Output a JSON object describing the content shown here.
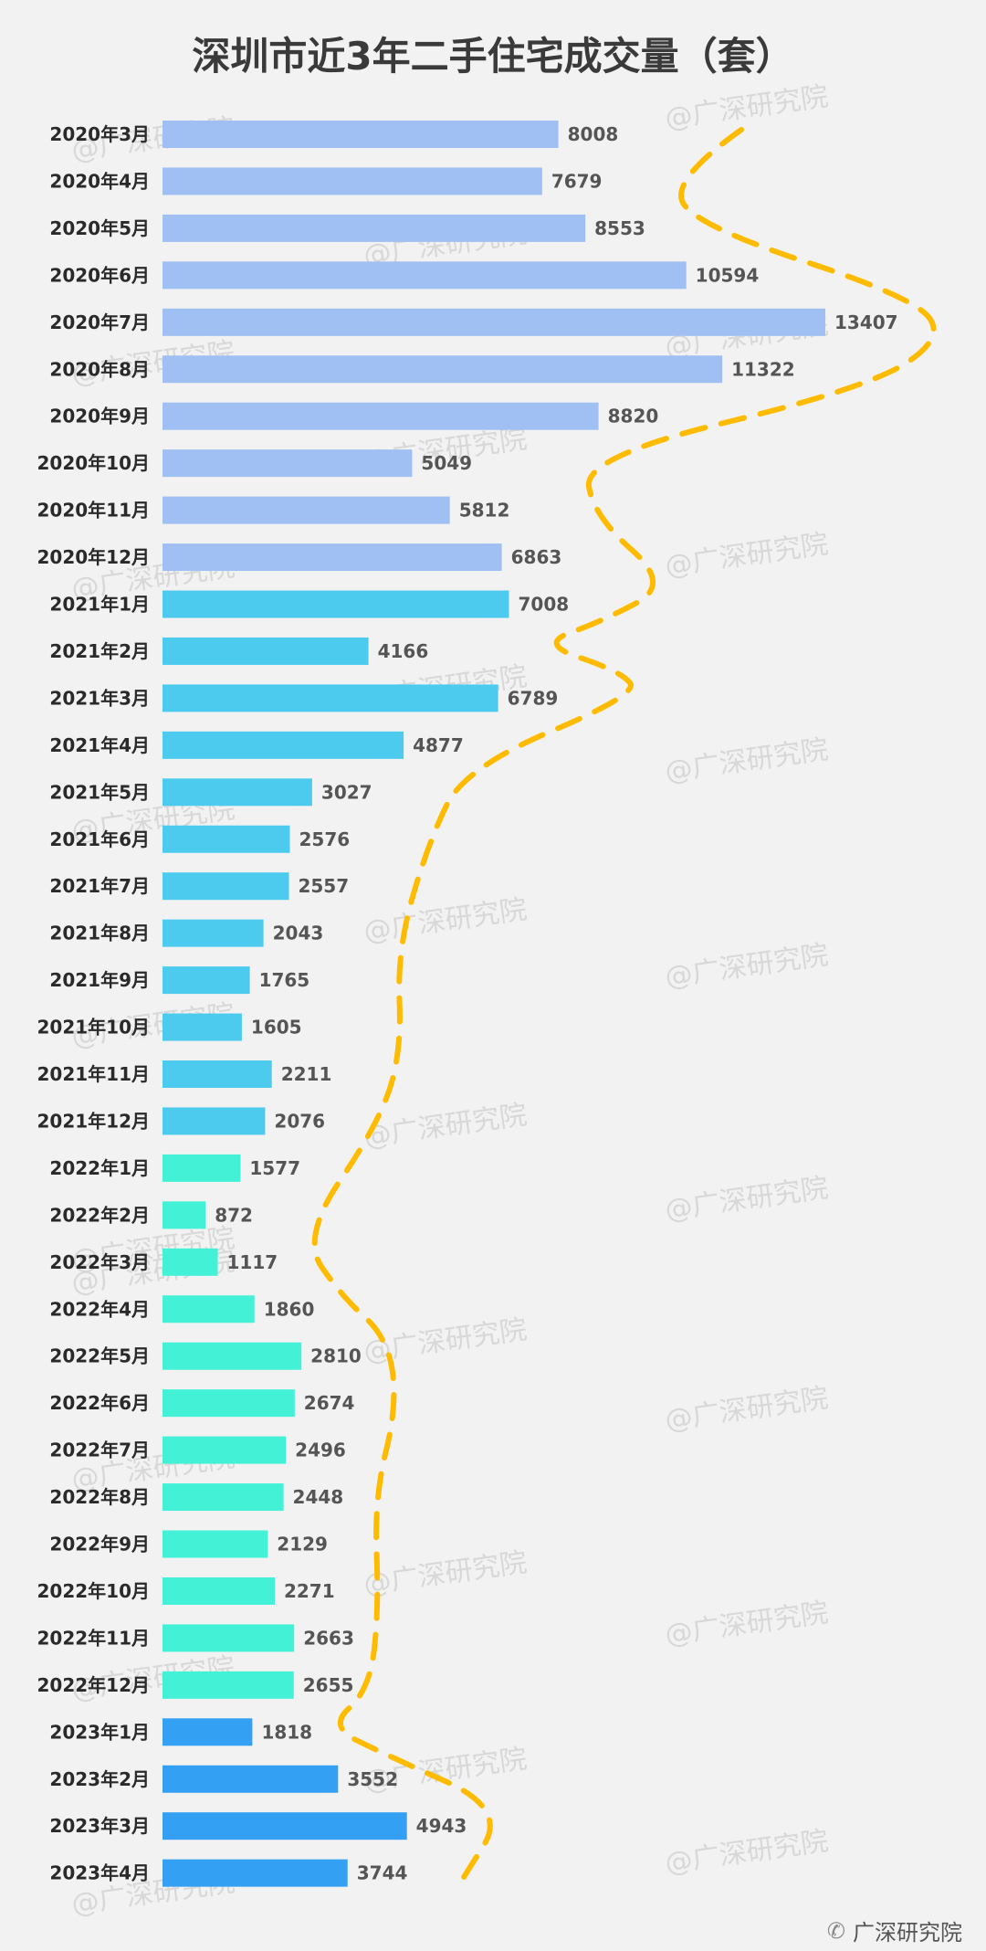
{
  "chart_data": {
    "type": "bar",
    "orientation": "horizontal",
    "title": "深圳市近3年二手住宅成交量（套）",
    "categories": [
      "2020年3月",
      "2020年4月",
      "2020年5月",
      "2020年6月",
      "2020年7月",
      "2020年8月",
      "2020年9月",
      "2020年10月",
      "2020年11月",
      "2020年12月",
      "2021年1月",
      "2021年2月",
      "2021年3月",
      "2021年4月",
      "2021年5月",
      "2021年6月",
      "2021年7月",
      "2021年8月",
      "2021年9月",
      "2021年10月",
      "2021年11月",
      "2021年12月",
      "2022年1月",
      "2022年2月",
      "2022年3月",
      "2022年4月",
      "2022年5月",
      "2022年6月",
      "2022年7月",
      "2022年8月",
      "2022年9月",
      "2022年10月",
      "2022年11月",
      "2022年12月",
      "2023年1月",
      "2023年2月",
      "2023年3月",
      "2023年4月"
    ],
    "values": [
      8008,
      7679,
      8553,
      10594,
      13407,
      11322,
      8820,
      5049,
      5812,
      6863,
      7008,
      4166,
      6789,
      4877,
      3027,
      2576,
      2557,
      2043,
      1765,
      1605,
      2211,
      2076,
      1577,
      872,
      1117,
      1860,
      2810,
      2674,
      2496,
      2448,
      2129,
      2271,
      2663,
      2655,
      1818,
      3552,
      4943,
      3744
    ],
    "xlim": [
      0,
      13407
    ],
    "grid": false,
    "legend": "none",
    "year_colors": {
      "2020": "#a0bff2",
      "2021": "#4ccbef",
      "2022": "#43f2d6",
      "2023": "#33a0f4"
    },
    "trend_line_color": "#ffbb00"
  },
  "watermark": "@广深研究院",
  "account": {
    "icon": "wechat-icon",
    "name": "广深研究院"
  }
}
